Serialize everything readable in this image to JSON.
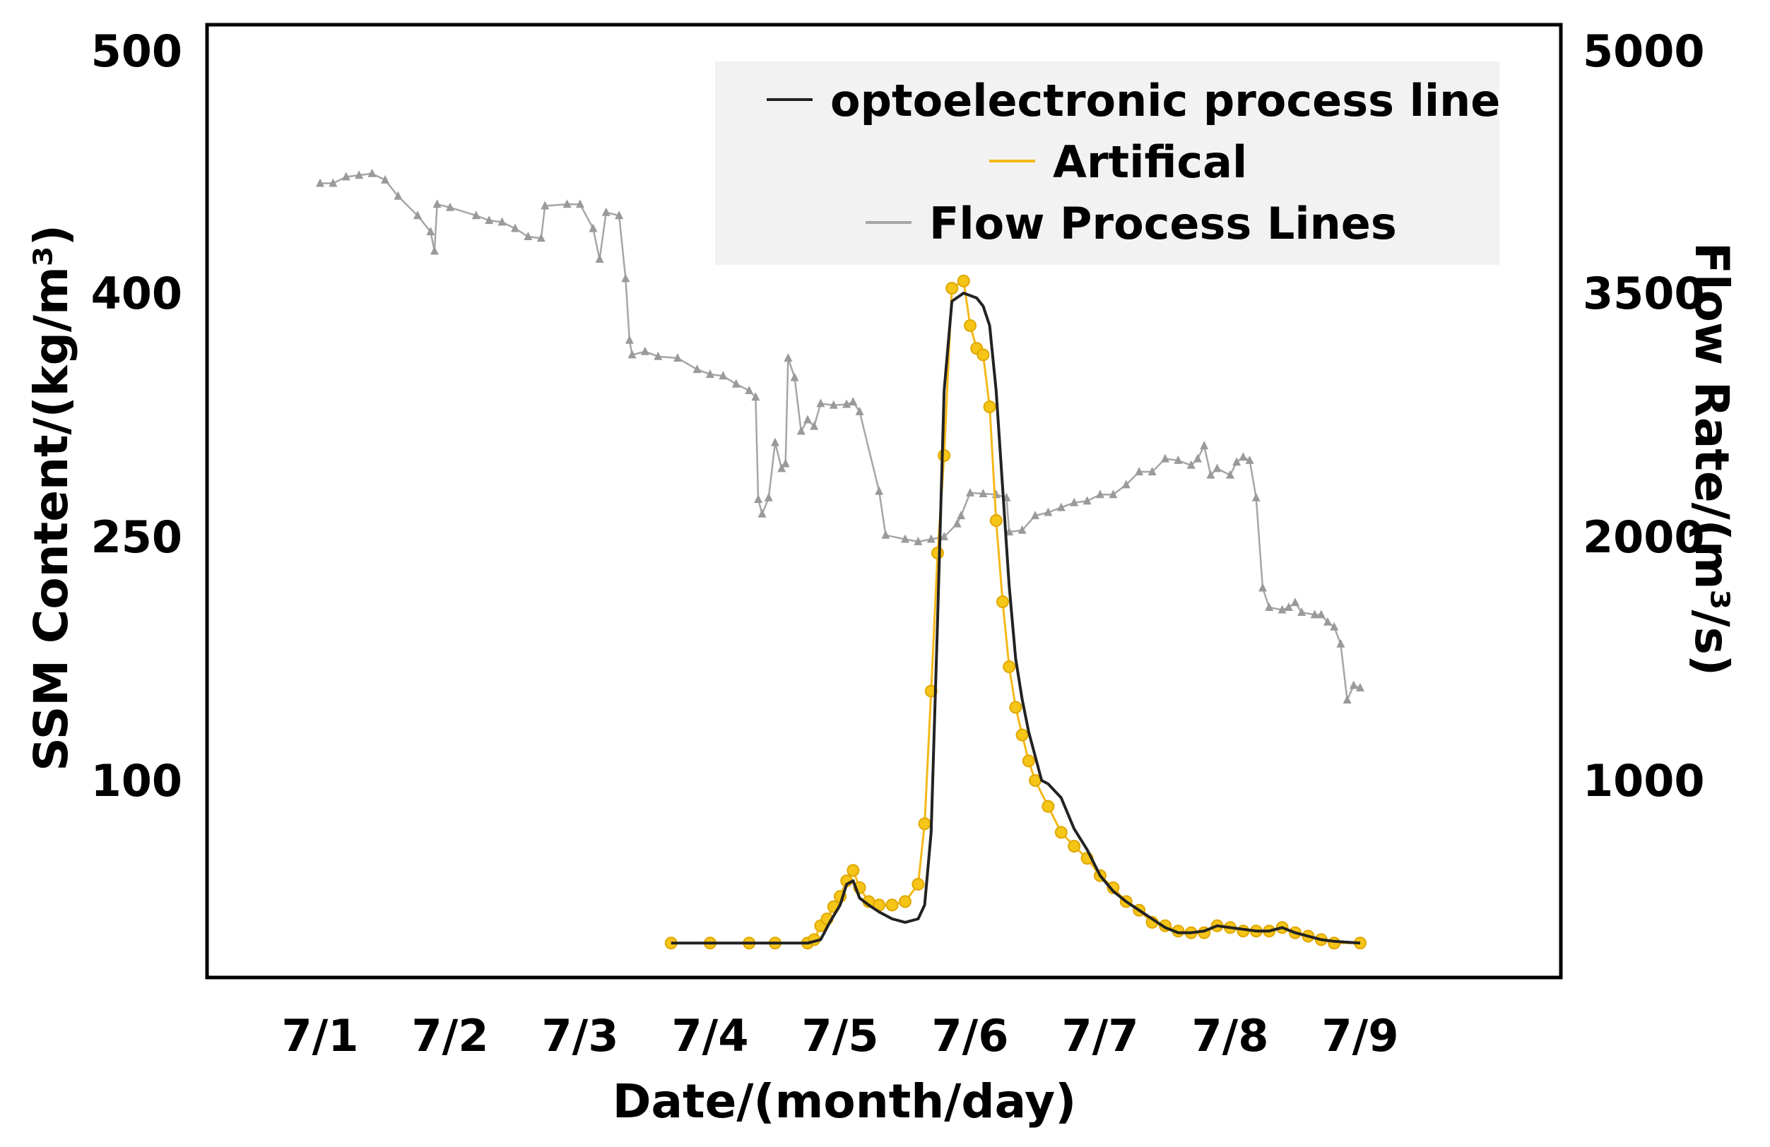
{
  "chart_data": {
    "type": "line",
    "xlabel": "Date/(month/day)",
    "ylabel_left": "SSM Content/(kg/m³)",
    "ylabel_right": "Flow Rate/(m³/s)",
    "categories": [
      "7/1",
      "7/2",
      "7/3",
      "7/4",
      "7/5",
      "7/6",
      "7/7",
      "7/8",
      "7/9"
    ],
    "x_range": [
      0.0,
      8.0
    ],
    "y_left_ticks": [
      {
        "value": 500,
        "label": "500"
      },
      {
        "value": 400,
        "label": "400"
      },
      {
        "value": 250,
        "label": "250"
      },
      {
        "value": 100,
        "label": "100"
      }
    ],
    "y_right_ticks": [
      {
        "value": 5000,
        "label": "5000"
      },
      {
        "value": 3500,
        "label": "3500"
      },
      {
        "value": 2000,
        "label": "2000"
      },
      {
        "value": 1000,
        "label": "1000"
      }
    ],
    "legend": {
      "position": "top-right",
      "entries": [
        {
          "label": "optoelectronic process line",
          "color": "#222222"
        },
        {
          "label": "Artifical",
          "color": "#f5b818"
        },
        {
          "label": "Flow Process Lines",
          "color": "#a6a6a6"
        }
      ]
    },
    "series": [
      {
        "name": "optoelectronic process line",
        "axis": "left",
        "color": "#222222",
        "points": [
          [
            2.7,
            6
          ],
          [
            3.0,
            6
          ],
          [
            3.3,
            6
          ],
          [
            3.5,
            6
          ],
          [
            3.75,
            6
          ],
          [
            3.85,
            8
          ],
          [
            3.92,
            18
          ],
          [
            4.0,
            28
          ],
          [
            4.05,
            40
          ],
          [
            4.1,
            42
          ],
          [
            4.15,
            32
          ],
          [
            4.22,
            28
          ],
          [
            4.3,
            24
          ],
          [
            4.4,
            20
          ],
          [
            4.5,
            18
          ],
          [
            4.6,
            20
          ],
          [
            4.65,
            28
          ],
          [
            4.7,
            70
          ],
          [
            4.75,
            200
          ],
          [
            4.8,
            340
          ],
          [
            4.86,
            395
          ],
          [
            4.95,
            400
          ],
          [
            5.05,
            397
          ],
          [
            5.1,
            392
          ],
          [
            5.15,
            380
          ],
          [
            5.2,
            340
          ],
          [
            5.25,
            280
          ],
          [
            5.3,
            220
          ],
          [
            5.35,
            175
          ],
          [
            5.4,
            150
          ],
          [
            5.45,
            130
          ],
          [
            5.5,
            115
          ],
          [
            5.55,
            100
          ],
          [
            5.6,
            98
          ],
          [
            5.7,
            90
          ],
          [
            5.8,
            72
          ],
          [
            5.9,
            60
          ],
          [
            6.0,
            45
          ],
          [
            6.1,
            36
          ],
          [
            6.2,
            30
          ],
          [
            6.3,
            25
          ],
          [
            6.4,
            20
          ],
          [
            6.5,
            15
          ],
          [
            6.6,
            12
          ],
          [
            6.7,
            12
          ],
          [
            6.8,
            13
          ],
          [
            6.9,
            16
          ],
          [
            7.0,
            15
          ],
          [
            7.1,
            14
          ],
          [
            7.2,
            13
          ],
          [
            7.3,
            13
          ],
          [
            7.4,
            15
          ],
          [
            7.5,
            12
          ],
          [
            7.6,
            10
          ],
          [
            7.7,
            8
          ],
          [
            7.8,
            7
          ],
          [
            8.0,
            6
          ]
        ]
      },
      {
        "name": "Artifical",
        "axis": "left",
        "color": "#f5b818",
        "points": [
          [
            2.7,
            6
          ],
          [
            3.0,
            6
          ],
          [
            3.3,
            6
          ],
          [
            3.5,
            6
          ],
          [
            3.75,
            6
          ],
          [
            3.8,
            8
          ],
          [
            3.85,
            16
          ],
          [
            3.9,
            20
          ],
          [
            3.95,
            27
          ],
          [
            4.0,
            33
          ],
          [
            4.05,
            42
          ],
          [
            4.1,
            48
          ],
          [
            4.15,
            38
          ],
          [
            4.22,
            30
          ],
          [
            4.3,
            28
          ],
          [
            4.4,
            28
          ],
          [
            4.5,
            30
          ],
          [
            4.6,
            40
          ],
          [
            4.65,
            75
          ],
          [
            4.7,
            155
          ],
          [
            4.75,
            240
          ],
          [
            4.8,
            300
          ],
          [
            4.86,
            402
          ],
          [
            4.95,
            405
          ],
          [
            5.0,
            380
          ],
          [
            5.05,
            366
          ],
          [
            5.1,
            362
          ],
          [
            5.15,
            330
          ],
          [
            5.2,
            260
          ],
          [
            5.25,
            210
          ],
          [
            5.3,
            170
          ],
          [
            5.35,
            145
          ],
          [
            5.4,
            128
          ],
          [
            5.45,
            112
          ],
          [
            5.5,
            100
          ],
          [
            5.6,
            85
          ],
          [
            5.7,
            70
          ],
          [
            5.8,
            62
          ],
          [
            5.9,
            55
          ],
          [
            6.0,
            45
          ],
          [
            6.1,
            38
          ],
          [
            6.2,
            30
          ],
          [
            6.3,
            25
          ],
          [
            6.4,
            18
          ],
          [
            6.5,
            16
          ],
          [
            6.6,
            13
          ],
          [
            6.7,
            12
          ],
          [
            6.8,
            12
          ],
          [
            6.9,
            16
          ],
          [
            7.0,
            15
          ],
          [
            7.1,
            13
          ],
          [
            7.2,
            13
          ],
          [
            7.3,
            13
          ],
          [
            7.4,
            15
          ],
          [
            7.5,
            12
          ],
          [
            7.6,
            10
          ],
          [
            7.7,
            8
          ],
          [
            7.8,
            6
          ],
          [
            8.0,
            6
          ]
        ]
      },
      {
        "name": "Flow Process Lines",
        "axis": "right",
        "color": "#a6a6a6",
        "points": [
          [
            0.0,
            4180
          ],
          [
            0.1,
            4180
          ],
          [
            0.2,
            4220
          ],
          [
            0.3,
            4230
          ],
          [
            0.4,
            4240
          ],
          [
            0.5,
            4200
          ],
          [
            0.6,
            4100
          ],
          [
            0.75,
            3980
          ],
          [
            0.85,
            3880
          ],
          [
            0.88,
            3760
          ],
          [
            0.9,
            4050
          ],
          [
            1.0,
            4030
          ],
          [
            1.2,
            3980
          ],
          [
            1.3,
            3950
          ],
          [
            1.4,
            3940
          ],
          [
            1.5,
            3900
          ],
          [
            1.6,
            3850
          ],
          [
            1.7,
            3840
          ],
          [
            1.73,
            4040
          ],
          [
            1.9,
            4050
          ],
          [
            2.0,
            4050
          ],
          [
            2.1,
            3900
          ],
          [
            2.15,
            3710
          ],
          [
            2.2,
            4000
          ],
          [
            2.3,
            3980
          ],
          [
            2.35,
            3590
          ],
          [
            2.38,
            3210
          ],
          [
            2.4,
            3120
          ],
          [
            2.5,
            3140
          ],
          [
            2.6,
            3110
          ],
          [
            2.75,
            3100
          ],
          [
            2.9,
            3030
          ],
          [
            3.0,
            3000
          ],
          [
            3.1,
            2990
          ],
          [
            3.2,
            2940
          ],
          [
            3.3,
            2900
          ],
          [
            3.35,
            2860
          ],
          [
            3.37,
            2230
          ],
          [
            3.4,
            2140
          ],
          [
            3.45,
            2240
          ],
          [
            3.5,
            2580
          ],
          [
            3.55,
            2420
          ],
          [
            3.58,
            2450
          ],
          [
            3.6,
            3100
          ],
          [
            3.65,
            2980
          ],
          [
            3.7,
            2650
          ],
          [
            3.75,
            2720
          ],
          [
            3.8,
            2680
          ],
          [
            3.85,
            2820
          ],
          [
            3.95,
            2810
          ],
          [
            4.05,
            2815
          ],
          [
            4.1,
            2830
          ],
          [
            4.15,
            2770
          ],
          [
            4.3,
            2280
          ],
          [
            4.35,
            2010
          ],
          [
            4.5,
            1990
          ],
          [
            4.6,
            1980
          ],
          [
            4.7,
            1990
          ],
          [
            4.8,
            2000
          ],
          [
            4.9,
            2080
          ],
          [
            4.93,
            2130
          ],
          [
            5.0,
            2270
          ],
          [
            5.1,
            2265
          ],
          [
            5.2,
            2260
          ],
          [
            5.28,
            2240
          ],
          [
            5.3,
            2030
          ],
          [
            5.4,
            2040
          ],
          [
            5.5,
            2130
          ],
          [
            5.6,
            2150
          ],
          [
            5.7,
            2180
          ],
          [
            5.8,
            2210
          ],
          [
            5.9,
            2220
          ],
          [
            6.0,
            2260
          ],
          [
            6.1,
            2260
          ],
          [
            6.2,
            2320
          ],
          [
            6.3,
            2400
          ],
          [
            6.4,
            2400
          ],
          [
            6.5,
            2480
          ],
          [
            6.6,
            2470
          ],
          [
            6.7,
            2440
          ],
          [
            6.75,
            2480
          ],
          [
            6.8,
            2560
          ],
          [
            6.85,
            2380
          ],
          [
            6.9,
            2420
          ],
          [
            7.0,
            2380
          ],
          [
            7.05,
            2460
          ],
          [
            7.1,
            2490
          ],
          [
            7.15,
            2470
          ],
          [
            7.2,
            2240
          ],
          [
            7.25,
            1790
          ],
          [
            7.3,
            1710
          ],
          [
            7.4,
            1700
          ],
          [
            7.45,
            1710
          ],
          [
            7.5,
            1730
          ],
          [
            7.55,
            1690
          ],
          [
            7.65,
            1680
          ],
          [
            7.7,
            1680
          ],
          [
            7.75,
            1650
          ],
          [
            7.8,
            1630
          ],
          [
            7.85,
            1560
          ],
          [
            7.9,
            1330
          ],
          [
            7.95,
            1390
          ],
          [
            8.0,
            1380
          ]
        ]
      }
    ]
  }
}
